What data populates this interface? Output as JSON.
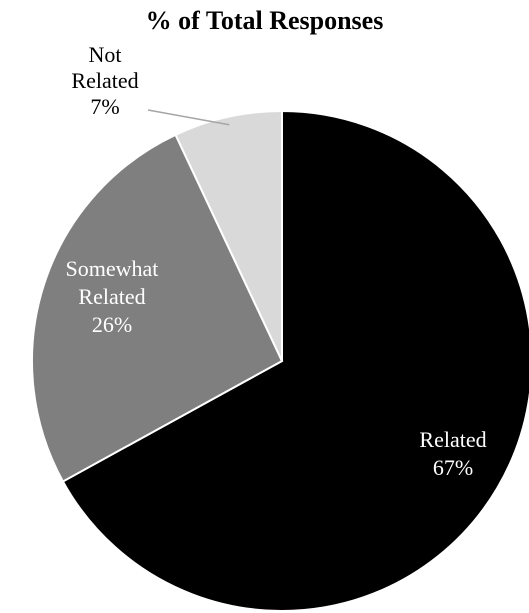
{
  "chart_data": {
    "type": "pie",
    "title": "% of Total Responses",
    "slices": [
      {
        "label_lines": [
          "Related"
        ],
        "value": 67,
        "value_label": "67%",
        "color": "#000000",
        "label_color": "#ffffff"
      },
      {
        "label_lines": [
          "Somewhat",
          "Related"
        ],
        "value": 26,
        "value_label": "26%",
        "color": "#7f7f7f",
        "label_color": "#ffffff"
      },
      {
        "label_lines": [
          "Not",
          "Related"
        ],
        "value": 7,
        "value_label": "7%",
        "color": "#d9d9d9",
        "label_color": "#000000"
      }
    ]
  }
}
